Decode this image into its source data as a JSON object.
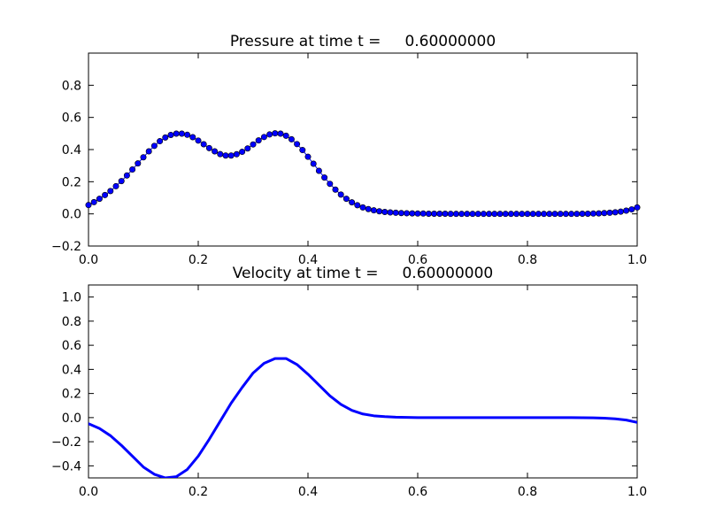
{
  "chart_data": [
    {
      "type": "scatter",
      "title": "Pressure at time t =     0.60000000",
      "xlabel": "",
      "ylabel": "",
      "xlim": [
        0.0,
        1.0
      ],
      "ylim": [
        -0.2,
        1.0
      ],
      "xticks": [
        "0.0",
        "0.2",
        "0.4",
        "0.6",
        "0.8",
        "1.0"
      ],
      "yticks": [
        "−0.2",
        "0.0",
        "0.2",
        "0.4",
        "0.6",
        "0.8"
      ],
      "grid": false,
      "color": "#0000ff",
      "line": true,
      "series": [
        {
          "x": [
            0.0,
            0.01,
            0.02,
            0.03,
            0.04,
            0.05,
            0.06,
            0.07,
            0.08,
            0.09,
            0.1,
            0.11,
            0.12,
            0.13,
            0.14,
            0.15,
            0.16,
            0.17,
            0.18,
            0.19,
            0.2,
            0.21,
            0.22,
            0.23,
            0.24,
            0.25,
            0.26,
            0.27,
            0.28,
            0.29,
            0.3,
            0.31,
            0.32,
            0.33,
            0.34,
            0.35,
            0.36,
            0.37,
            0.38,
            0.39,
            0.4,
            0.41,
            0.42,
            0.43,
            0.44,
            0.45,
            0.46,
            0.47,
            0.48,
            0.49,
            0.5,
            0.51,
            0.52,
            0.53,
            0.54,
            0.55,
            0.56,
            0.57,
            0.58,
            0.59,
            0.6,
            0.61,
            0.62,
            0.63,
            0.64,
            0.65,
            0.66,
            0.67,
            0.68,
            0.69,
            0.7,
            0.71,
            0.72,
            0.73,
            0.74,
            0.75,
            0.76,
            0.77,
            0.78,
            0.79,
            0.8,
            0.81,
            0.82,
            0.83,
            0.84,
            0.85,
            0.86,
            0.87,
            0.88,
            0.89,
            0.9,
            0.91,
            0.92,
            0.93,
            0.94,
            0.95,
            0.96,
            0.97,
            0.98,
            0.99,
            1.0
          ],
          "y": [
            0.055,
            0.073,
            0.094,
            0.117,
            0.142,
            0.172,
            0.204,
            0.239,
            0.276,
            0.314,
            0.352,
            0.389,
            0.423,
            0.452,
            0.475,
            0.491,
            0.499,
            0.499,
            0.492,
            0.477,
            0.456,
            0.433,
            0.409,
            0.389,
            0.372,
            0.363,
            0.363,
            0.371,
            0.386,
            0.407,
            0.432,
            0.457,
            0.478,
            0.494,
            0.501,
            0.499,
            0.486,
            0.464,
            0.434,
            0.397,
            0.355,
            0.312,
            0.268,
            0.226,
            0.187,
            0.151,
            0.12,
            0.094,
            0.072,
            0.054,
            0.04,
            0.03,
            0.022,
            0.016,
            0.012,
            0.009,
            0.007,
            0.005,
            0.004,
            0.003,
            0.002,
            0.002,
            0.001,
            0.001,
            0.001,
            0.001,
            0.0,
            0.0,
            0.0,
            0.0,
            0.0,
            0.0,
            0.0,
            0.0,
            0.0,
            0.0,
            0.0,
            0.0,
            0.0,
            0.0,
            0.0,
            0.0,
            0.0,
            0.0,
            0.0,
            0.0,
            0.0,
            0.0,
            0.0,
            0.0,
            0.001,
            0.001,
            0.002,
            0.003,
            0.005,
            0.007,
            0.01,
            0.014,
            0.02,
            0.028,
            0.04
          ]
        }
      ]
    },
    {
      "type": "line",
      "title": "Velocity at time t =     0.60000000",
      "xlabel": "",
      "ylabel": "",
      "xlim": [
        0.0,
        1.0
      ],
      "ylim": [
        -0.5,
        1.1
      ],
      "xticks": [
        "0.0",
        "0.2",
        "0.4",
        "0.6",
        "0.8",
        "1.0"
      ],
      "yticks": [
        "−0.4",
        "−0.2",
        "0.0",
        "0.2",
        "0.4",
        "0.6",
        "0.8",
        "1.0"
      ],
      "grid": false,
      "color": "#0000ff",
      "series": [
        {
          "x": [
            0.0,
            0.02,
            0.04,
            0.06,
            0.08,
            0.1,
            0.12,
            0.14,
            0.16,
            0.18,
            0.2,
            0.22,
            0.24,
            0.26,
            0.28,
            0.3,
            0.32,
            0.34,
            0.36,
            0.38,
            0.4,
            0.42,
            0.44,
            0.46,
            0.48,
            0.5,
            0.52,
            0.54,
            0.56,
            0.58,
            0.6,
            0.65,
            0.7,
            0.75,
            0.8,
            0.85,
            0.88,
            0.9,
            0.92,
            0.94,
            0.96,
            0.98,
            1.0
          ],
          "y": [
            -0.05,
            -0.09,
            -0.15,
            -0.23,
            -0.32,
            -0.41,
            -0.47,
            -0.5,
            -0.49,
            -0.43,
            -0.32,
            -0.18,
            -0.03,
            0.12,
            0.25,
            0.37,
            0.45,
            0.49,
            0.49,
            0.44,
            0.36,
            0.27,
            0.18,
            0.11,
            0.06,
            0.03,
            0.015,
            0.008,
            0.004,
            0.002,
            0.0,
            0.0,
            0.0,
            0.0,
            0.0,
            0.0,
            0.0,
            -0.001,
            -0.002,
            -0.005,
            -0.01,
            -0.02,
            -0.04
          ]
        }
      ]
    }
  ]
}
